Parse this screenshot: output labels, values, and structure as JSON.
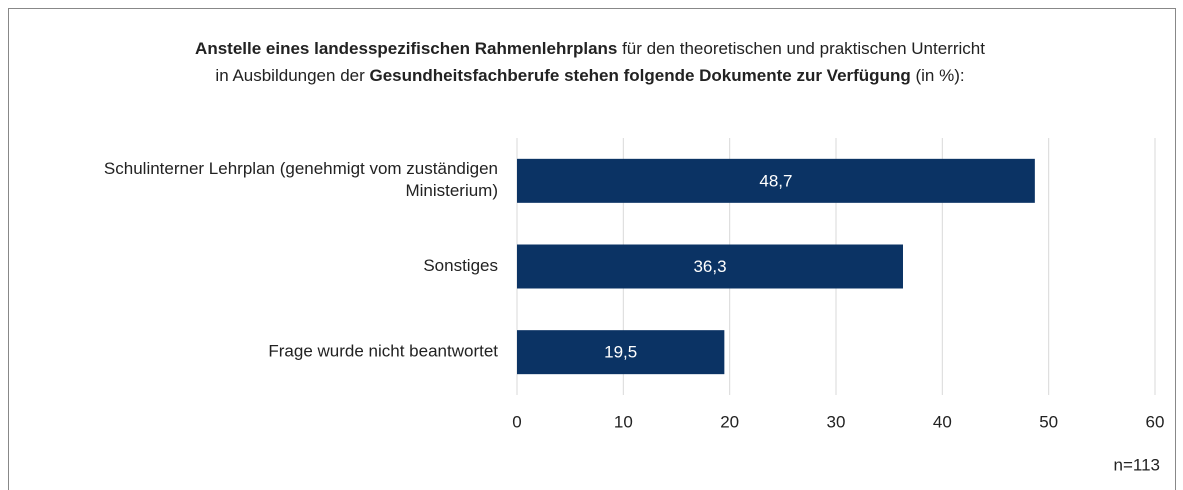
{
  "chart_data": {
    "type": "barh",
    "title": [
      [
        {
          "text": "Anstelle eines landesspezifischen Rahmenlehrplans",
          "bold": true
        },
        {
          "text": " für den theoretischen und praktischen Unterricht",
          "bold": false
        }
      ],
      [
        {
          "text": "in Ausbildungen der ",
          "bold": false
        },
        {
          "text": "Gesundheitsfachberufe stehen folgende Dokumente zur Verfügung",
          "bold": true
        },
        {
          "text": " (in %):",
          "bold": false
        }
      ]
    ],
    "categories": [
      "Schulinterner Lehrplan (genehmigt vom zuständigen\nMinisterium)",
      "Sonstiges",
      "Frage wurde nicht beantwortet"
    ],
    "values": [
      48.7,
      36.3,
      19.5
    ],
    "value_labels": [
      "48,7",
      "36,3",
      "19,5"
    ],
    "color": "#0b3364",
    "xlim": [
      0,
      60
    ],
    "xticks": [
      0,
      10,
      20,
      30,
      40,
      50,
      60
    ],
    "grid": true,
    "annotation": "n=113"
  }
}
